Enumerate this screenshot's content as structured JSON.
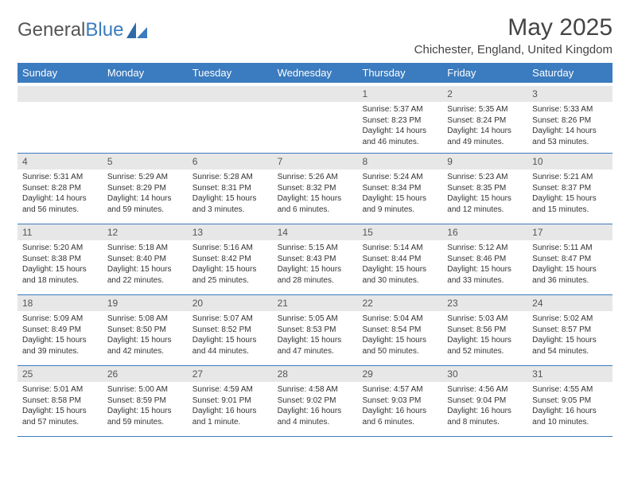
{
  "brand": {
    "part1": "General",
    "part2": "Blue"
  },
  "title": "May 2025",
  "location": "Chichester, England, United Kingdom",
  "colors": {
    "header_bg": "#3b7bbf",
    "daynum_bg": "#e7e7e7",
    "divider": "#3b7bbf",
    "text": "#333333"
  },
  "weekdays": [
    "Sunday",
    "Monday",
    "Tuesday",
    "Wednesday",
    "Thursday",
    "Friday",
    "Saturday"
  ],
  "weeks": [
    [
      {
        "empty": true
      },
      {
        "empty": true
      },
      {
        "empty": true
      },
      {
        "empty": true
      },
      {
        "num": "1",
        "sunrise": "Sunrise: 5:37 AM",
        "sunset": "Sunset: 8:23 PM",
        "daylight": "Daylight: 14 hours and 46 minutes."
      },
      {
        "num": "2",
        "sunrise": "Sunrise: 5:35 AM",
        "sunset": "Sunset: 8:24 PM",
        "daylight": "Daylight: 14 hours and 49 minutes."
      },
      {
        "num": "3",
        "sunrise": "Sunrise: 5:33 AM",
        "sunset": "Sunset: 8:26 PM",
        "daylight": "Daylight: 14 hours and 53 minutes."
      }
    ],
    [
      {
        "num": "4",
        "sunrise": "Sunrise: 5:31 AM",
        "sunset": "Sunset: 8:28 PM",
        "daylight": "Daylight: 14 hours and 56 minutes."
      },
      {
        "num": "5",
        "sunrise": "Sunrise: 5:29 AM",
        "sunset": "Sunset: 8:29 PM",
        "daylight": "Daylight: 14 hours and 59 minutes."
      },
      {
        "num": "6",
        "sunrise": "Sunrise: 5:28 AM",
        "sunset": "Sunset: 8:31 PM",
        "daylight": "Daylight: 15 hours and 3 minutes."
      },
      {
        "num": "7",
        "sunrise": "Sunrise: 5:26 AM",
        "sunset": "Sunset: 8:32 PM",
        "daylight": "Daylight: 15 hours and 6 minutes."
      },
      {
        "num": "8",
        "sunrise": "Sunrise: 5:24 AM",
        "sunset": "Sunset: 8:34 PM",
        "daylight": "Daylight: 15 hours and 9 minutes."
      },
      {
        "num": "9",
        "sunrise": "Sunrise: 5:23 AM",
        "sunset": "Sunset: 8:35 PM",
        "daylight": "Daylight: 15 hours and 12 minutes."
      },
      {
        "num": "10",
        "sunrise": "Sunrise: 5:21 AM",
        "sunset": "Sunset: 8:37 PM",
        "daylight": "Daylight: 15 hours and 15 minutes."
      }
    ],
    [
      {
        "num": "11",
        "sunrise": "Sunrise: 5:20 AM",
        "sunset": "Sunset: 8:38 PM",
        "daylight": "Daylight: 15 hours and 18 minutes."
      },
      {
        "num": "12",
        "sunrise": "Sunrise: 5:18 AM",
        "sunset": "Sunset: 8:40 PM",
        "daylight": "Daylight: 15 hours and 22 minutes."
      },
      {
        "num": "13",
        "sunrise": "Sunrise: 5:16 AM",
        "sunset": "Sunset: 8:42 PM",
        "daylight": "Daylight: 15 hours and 25 minutes."
      },
      {
        "num": "14",
        "sunrise": "Sunrise: 5:15 AM",
        "sunset": "Sunset: 8:43 PM",
        "daylight": "Daylight: 15 hours and 28 minutes."
      },
      {
        "num": "15",
        "sunrise": "Sunrise: 5:14 AM",
        "sunset": "Sunset: 8:44 PM",
        "daylight": "Daylight: 15 hours and 30 minutes."
      },
      {
        "num": "16",
        "sunrise": "Sunrise: 5:12 AM",
        "sunset": "Sunset: 8:46 PM",
        "daylight": "Daylight: 15 hours and 33 minutes."
      },
      {
        "num": "17",
        "sunrise": "Sunrise: 5:11 AM",
        "sunset": "Sunset: 8:47 PM",
        "daylight": "Daylight: 15 hours and 36 minutes."
      }
    ],
    [
      {
        "num": "18",
        "sunrise": "Sunrise: 5:09 AM",
        "sunset": "Sunset: 8:49 PM",
        "daylight": "Daylight: 15 hours and 39 minutes."
      },
      {
        "num": "19",
        "sunrise": "Sunrise: 5:08 AM",
        "sunset": "Sunset: 8:50 PM",
        "daylight": "Daylight: 15 hours and 42 minutes."
      },
      {
        "num": "20",
        "sunrise": "Sunrise: 5:07 AM",
        "sunset": "Sunset: 8:52 PM",
        "daylight": "Daylight: 15 hours and 44 minutes."
      },
      {
        "num": "21",
        "sunrise": "Sunrise: 5:05 AM",
        "sunset": "Sunset: 8:53 PM",
        "daylight": "Daylight: 15 hours and 47 minutes."
      },
      {
        "num": "22",
        "sunrise": "Sunrise: 5:04 AM",
        "sunset": "Sunset: 8:54 PM",
        "daylight": "Daylight: 15 hours and 50 minutes."
      },
      {
        "num": "23",
        "sunrise": "Sunrise: 5:03 AM",
        "sunset": "Sunset: 8:56 PM",
        "daylight": "Daylight: 15 hours and 52 minutes."
      },
      {
        "num": "24",
        "sunrise": "Sunrise: 5:02 AM",
        "sunset": "Sunset: 8:57 PM",
        "daylight": "Daylight: 15 hours and 54 minutes."
      }
    ],
    [
      {
        "num": "25",
        "sunrise": "Sunrise: 5:01 AM",
        "sunset": "Sunset: 8:58 PM",
        "daylight": "Daylight: 15 hours and 57 minutes."
      },
      {
        "num": "26",
        "sunrise": "Sunrise: 5:00 AM",
        "sunset": "Sunset: 8:59 PM",
        "daylight": "Daylight: 15 hours and 59 minutes."
      },
      {
        "num": "27",
        "sunrise": "Sunrise: 4:59 AM",
        "sunset": "Sunset: 9:01 PM",
        "daylight": "Daylight: 16 hours and 1 minute."
      },
      {
        "num": "28",
        "sunrise": "Sunrise: 4:58 AM",
        "sunset": "Sunset: 9:02 PM",
        "daylight": "Daylight: 16 hours and 4 minutes."
      },
      {
        "num": "29",
        "sunrise": "Sunrise: 4:57 AM",
        "sunset": "Sunset: 9:03 PM",
        "daylight": "Daylight: 16 hours and 6 minutes."
      },
      {
        "num": "30",
        "sunrise": "Sunrise: 4:56 AM",
        "sunset": "Sunset: 9:04 PM",
        "daylight": "Daylight: 16 hours and 8 minutes."
      },
      {
        "num": "31",
        "sunrise": "Sunrise: 4:55 AM",
        "sunset": "Sunset: 9:05 PM",
        "daylight": "Daylight: 16 hours and 10 minutes."
      }
    ]
  ]
}
